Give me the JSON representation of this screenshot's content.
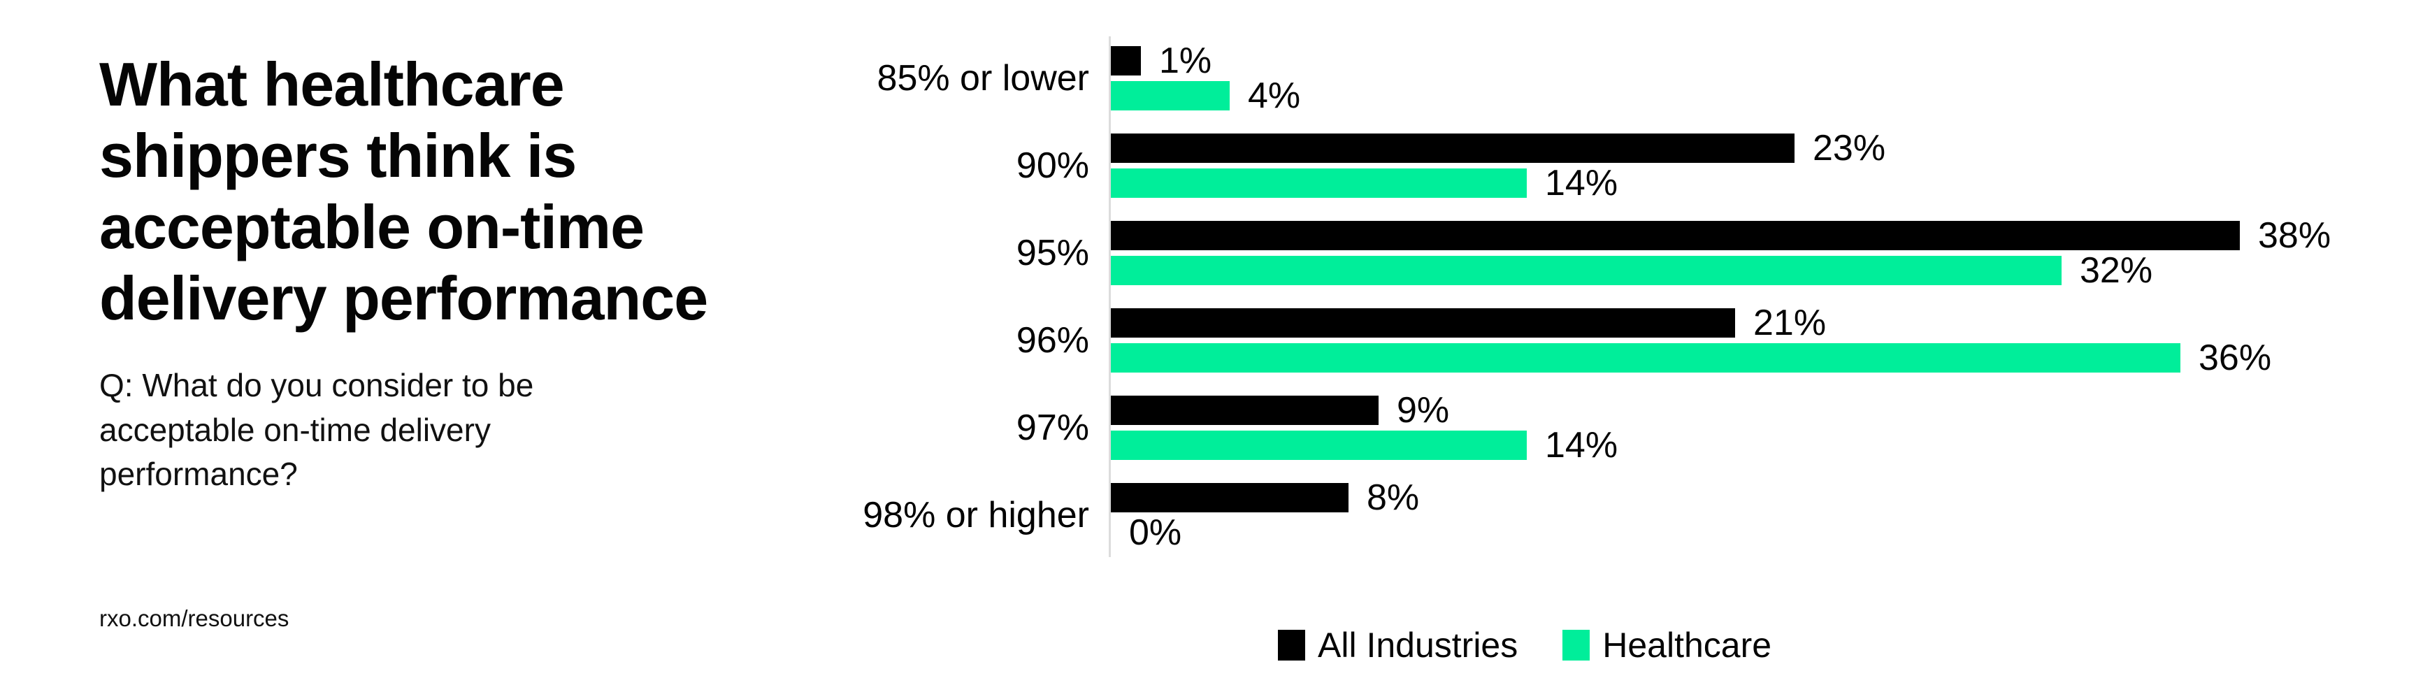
{
  "page": {
    "title": "What healthcare shippers think is acceptable on-time delivery performance",
    "question": "Q: What do you consider to be acceptable on-time delivery performance?",
    "footer_link": "rxo.com/resources",
    "background": "#ffffff",
    "text_color": "#000000"
  },
  "chart_data": {
    "type": "bar",
    "orientation": "horizontal",
    "title": "",
    "categories": [
      "85% or lower",
      "90%",
      "95%",
      "96%",
      "97%",
      "98% or higher"
    ],
    "series": [
      {
        "name": "All Industries",
        "color": "#000000",
        "values": [
          1,
          23,
          38,
          21,
          9,
          8
        ]
      },
      {
        "name": "Healthcare",
        "color": "#00ee9a",
        "values": [
          4,
          14,
          32,
          36,
          14,
          0
        ]
      }
    ],
    "value_suffix": "%",
    "xlim": [
      0,
      40
    ],
    "grid": false,
    "axis_color": "#dcdcdc",
    "legend_position": "bottom-center",
    "value_labels": "outside-end"
  }
}
